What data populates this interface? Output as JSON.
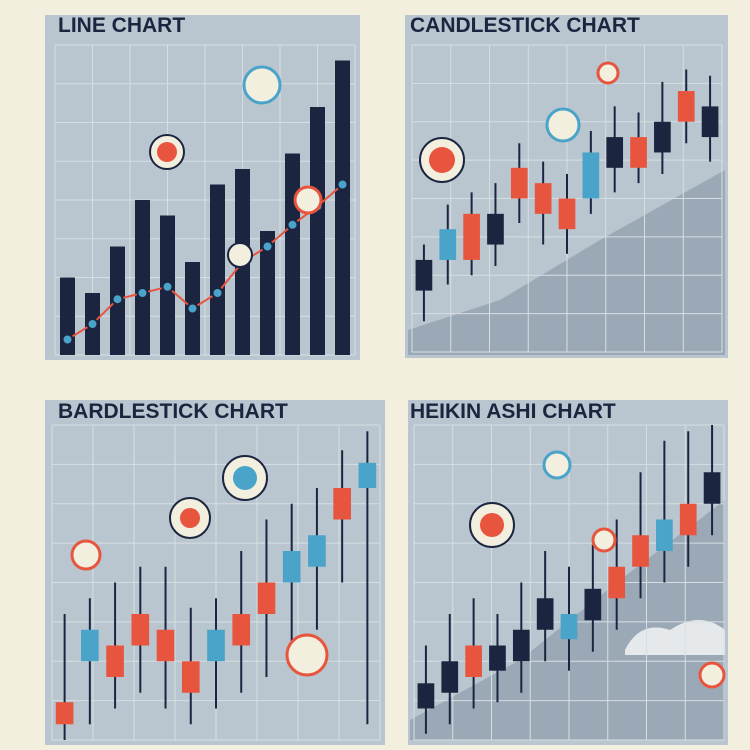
{
  "chart_data": [
    {
      "type": "bar-line",
      "title": "LINE CHART",
      "color": "#1c2540",
      "values": [
        25,
        20,
        35,
        50,
        45,
        30,
        55,
        60,
        40,
        65,
        80,
        95
      ],
      "line": {
        "color": "#e8553f",
        "values": [
          5,
          10,
          18,
          20,
          22,
          15,
          20,
          30,
          35,
          42,
          48,
          55
        ]
      },
      "ylim": [
        0,
        100
      ]
    },
    {
      "type": "candlestick",
      "title": "CANDLESTICK CHART",
      "open": [
        20,
        30,
        45,
        35,
        50,
        55,
        40,
        50,
        60,
        70,
        65,
        75,
        70
      ],
      "close": [
        30,
        40,
        30,
        45,
        60,
        45,
        50,
        65,
        70,
        60,
        75,
        85,
        80
      ],
      "high": [
        35,
        48,
        52,
        55,
        68,
        62,
        58,
        72,
        80,
        78,
        88,
        92,
        90
      ],
      "low": [
        10,
        22,
        25,
        28,
        42,
        35,
        32,
        45,
        52,
        55,
        58,
        68,
        62
      ],
      "colors": [
        "#1c2540",
        "#4aa3c8",
        "#e8553f",
        "#1c2540",
        "#e8553f",
        "#e8553f",
        "#e8553f",
        "#4aa3c8",
        "#1c2540",
        "#e8553f",
        "#1c2540",
        "#e8553f",
        "#1c2540"
      ],
      "ylim": [
        0,
        100
      ]
    },
    {
      "type": "candlestick",
      "title": "BARDLESTICK CHART",
      "open": [
        5,
        25,
        20,
        30,
        35,
        15,
        25,
        30,
        40,
        50,
        55,
        70,
        80
      ],
      "close": [
        12,
        35,
        30,
        40,
        25,
        25,
        35,
        40,
        50,
        60,
        65,
        80,
        88
      ],
      "high": [
        40,
        45,
        50,
        55,
        55,
        42,
        45,
        60,
        70,
        75,
        80,
        92,
        98
      ],
      "low": [
        0,
        5,
        10,
        15,
        10,
        5,
        10,
        15,
        20,
        30,
        35,
        50,
        5
      ],
      "colors": [
        "#e8553f",
        "#4aa3c8",
        "#e8553f",
        "#e8553f",
        "#e8553f",
        "#e8553f",
        "#4aa3c8",
        "#e8553f",
        "#e8553f",
        "#4aa3c8",
        "#4aa3c8",
        "#e8553f",
        "#4aa3c8"
      ],
      "ylim": [
        0,
        100
      ]
    },
    {
      "type": "candlestick",
      "title": "HEIKIN ASHI CHART",
      "open": [
        10,
        15,
        20,
        30,
        25,
        35,
        40,
        38,
        45,
        55,
        60,
        65,
        75
      ],
      "close": [
        18,
        25,
        30,
        22,
        35,
        45,
        32,
        48,
        55,
        65,
        70,
        75,
        85
      ],
      "high": [
        30,
        40,
        45,
        40,
        50,
        60,
        55,
        62,
        70,
        85,
        95,
        98,
        100
      ],
      "low": [
        2,
        5,
        10,
        12,
        15,
        25,
        22,
        28,
        35,
        45,
        50,
        55,
        65
      ],
      "colors": [
        "#1c2540",
        "#1c2540",
        "#e8553f",
        "#1c2540",
        "#1c2540",
        "#1c2540",
        "#4aa3c8",
        "#1c2540",
        "#e8553f",
        "#e8553f",
        "#4aa3c8",
        "#e8553f",
        "#1c2540"
      ],
      "ylim": [
        0,
        100
      ]
    }
  ]
}
